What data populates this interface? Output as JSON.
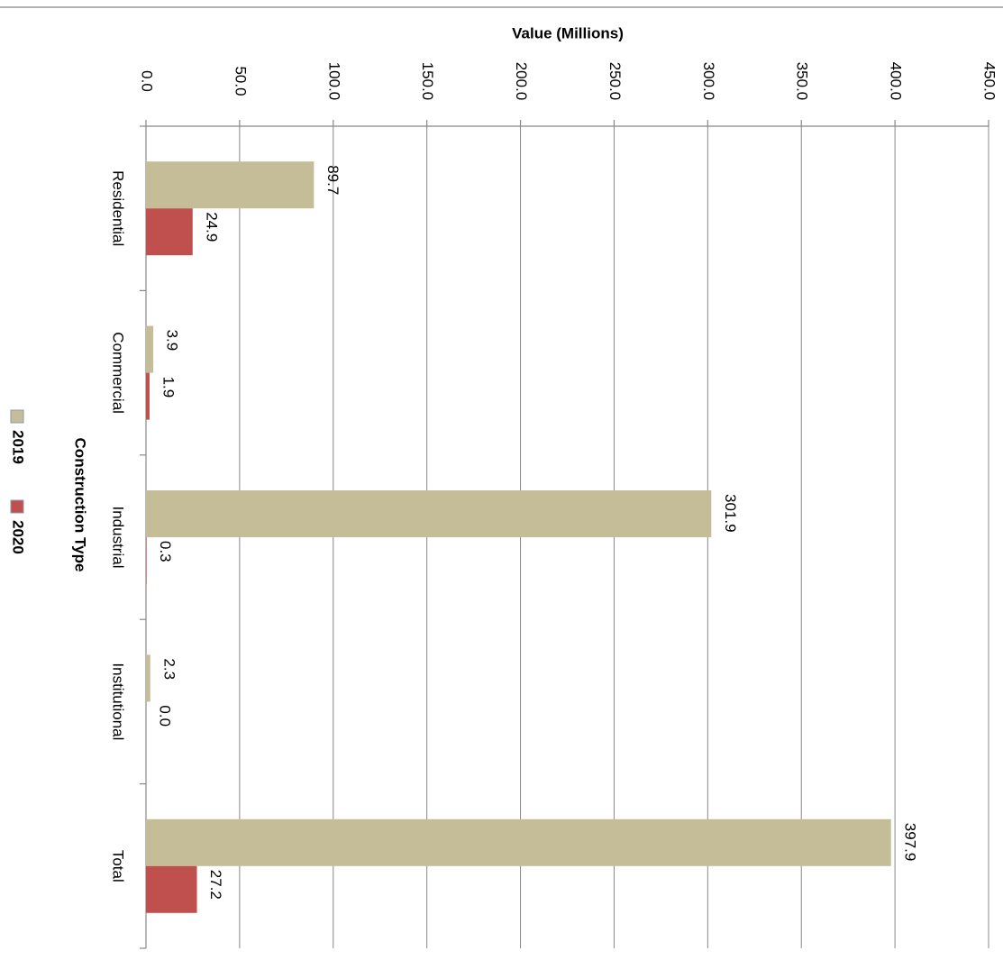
{
  "chart_data": {
    "type": "bar",
    "orientation": "rotated-90",
    "x_label": "Value (Millions)",
    "y_label": "Construction Type",
    "categories": [
      "Residential",
      "Commercial",
      "Industrial",
      "Institutional",
      "Total"
    ],
    "series": [
      {
        "name": "2019",
        "color": "#c4bd97",
        "values": [
          89.7,
          3.9,
          301.9,
          2.3,
          397.9
        ],
        "value_labels": [
          "89.7",
          "3.9",
          "301.9",
          "2.3",
          "397.9"
        ]
      },
      {
        "name": "2020",
        "color": "#c0504d",
        "values": [
          24.9,
          1.9,
          0.3,
          0.0,
          27.2
        ],
        "value_labels": [
          "24.9",
          "1.9",
          "0.3",
          "0.0",
          "27.2"
        ]
      }
    ],
    "ylim": [
      0,
      450
    ],
    "yticks": [
      {
        "value": 0,
        "label": "0.0"
      },
      {
        "value": 50,
        "label": "50.0"
      },
      {
        "value": 100,
        "label": "100.0"
      },
      {
        "value": 150,
        "label": "150.0"
      },
      {
        "value": 200,
        "label": "200.0"
      },
      {
        "value": 250,
        "label": "250.0"
      },
      {
        "value": 300,
        "label": "300.0"
      },
      {
        "value": 350,
        "label": "350.0"
      },
      {
        "value": 400,
        "label": "400.0"
      },
      {
        "value": 450,
        "label": "450.0"
      }
    ],
    "grid": true
  }
}
